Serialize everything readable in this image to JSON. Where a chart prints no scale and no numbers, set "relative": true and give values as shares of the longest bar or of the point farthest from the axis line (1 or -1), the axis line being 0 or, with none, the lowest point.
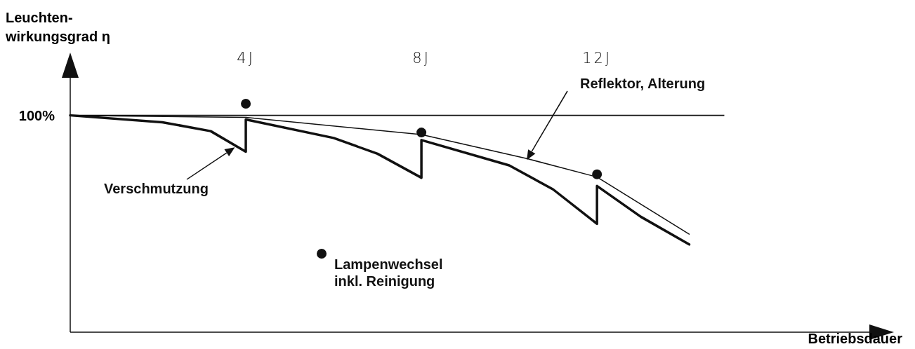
{
  "chart_data": {
    "type": "line",
    "relative": true,
    "xlabel": "Betriebsdauer",
    "ylabel": "Leuchten-\nwirkungsgrad η",
    "xlim": [
      0,
      18.7
    ],
    "xticks": [
      {
        "value": 4,
        "label": "4J"
      },
      {
        "value": 8,
        "label": "8J"
      },
      {
        "value": 12,
        "label": "12J"
      }
    ],
    "tick_labels": "x",
    "legend": "bottom",
    "marker": "none",
    "line_style": "solid",
    "series": [
      {
        "name": "Reflektor, Alterung",
        "color": "#111111",
        "x": [
          0,
          4,
          8,
          10.4,
          12,
          14.1
        ],
        "values": [
          0.949,
          0.94,
          0.865,
          0.76,
          0.679,
          0.429
        ]
      },
      {
        "name": "Verschmutzung",
        "color": "#111111",
        "x": [
          0,
          2.1,
          3.2,
          4,
          4,
          6,
          7,
          8,
          8,
          10,
          11,
          12,
          12,
          13,
          14.1
        ],
        "values": [
          0.949,
          0.919,
          0.88,
          0.79,
          0.931,
          0.85,
          0.781,
          0.676,
          0.841,
          0.73,
          0.625,
          0.474,
          0.64,
          0.505,
          0.384
        ]
      },
      {
        "name": "Lampenwechsel inkl. Reinigung",
        "type": "scatter",
        "marker": "circle",
        "color": "#111111",
        "x": [
          4,
          8,
          12
        ],
        "values": [
          1,
          0.874,
          0.691
        ]
      }
    ],
    "ref_lines": [
      {
        "axis": "y",
        "value": 0.949
      }
    ],
    "annotations": [
      "100%"
    ]
  }
}
